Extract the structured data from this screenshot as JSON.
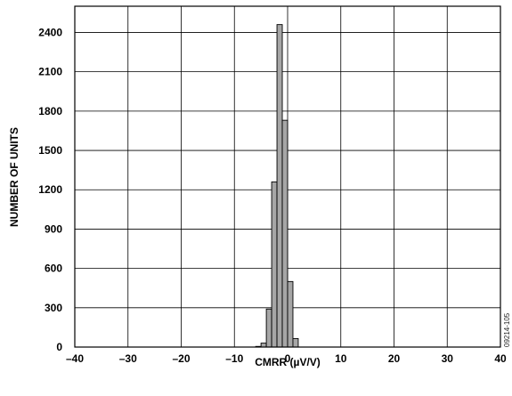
{
  "chart_data": {
    "type": "bar",
    "title": "",
    "xlabel": "CMRR (µV/V)",
    "ylabel": "NUMBER OF UNITS",
    "xlim": [
      -40,
      40
    ],
    "ylim": [
      0,
      2600
    ],
    "xticks": [
      -40,
      -30,
      -20,
      -10,
      0,
      10,
      20,
      30,
      40
    ],
    "xtick_labels": [
      "–40",
      "–30",
      "–20",
      "–10",
      "0",
      "10",
      "20",
      "30",
      "40"
    ],
    "yticks": [
      0,
      300,
      600,
      900,
      1200,
      1500,
      1800,
      2100,
      2400
    ],
    "ytick_labels": [
      "0",
      "300",
      "600",
      "900",
      "1200",
      "1500",
      "1800",
      "2100",
      "2400"
    ],
    "grid": true,
    "bar_color": "#a6a6a6",
    "bin_width": 1,
    "bin_centers": [
      -5.5,
      -4.5,
      -3.5,
      -2.5,
      -1.5,
      -0.5,
      0.5,
      1.5,
      2.5,
      3.5,
      4.5
    ],
    "values": [
      5,
      30,
      290,
      1260,
      2460,
      1730,
      500,
      65,
      0,
      0,
      0
    ],
    "figure_code": "09214-105"
  }
}
